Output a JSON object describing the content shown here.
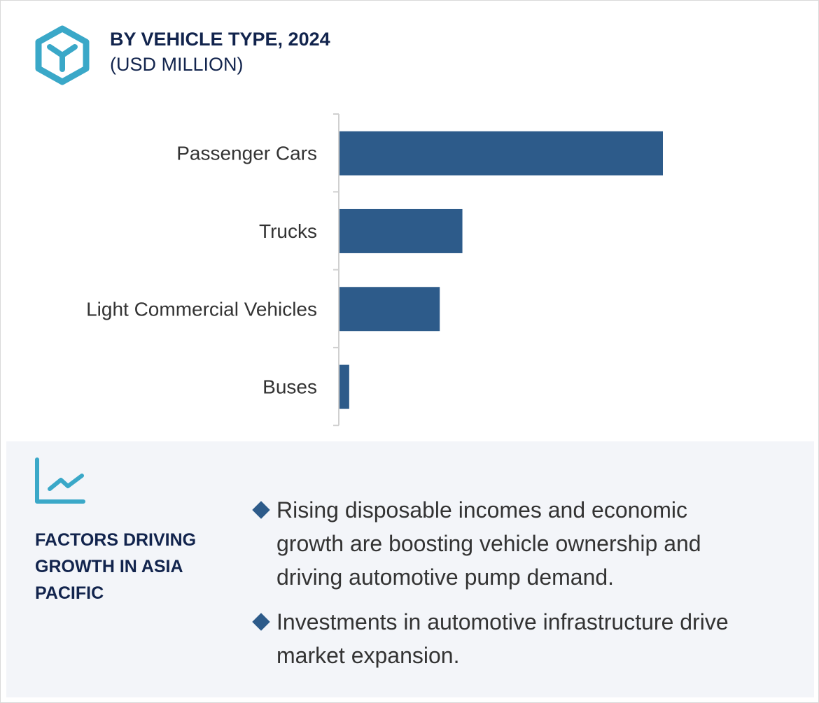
{
  "header": {
    "title": "BY VEHICLE TYPE, 2024",
    "subtitle": "(USD MILLION)",
    "icon": "hexagon-y-icon",
    "icon_color": "#3aa8c8"
  },
  "chart_data": {
    "type": "bar",
    "orientation": "horizontal",
    "title": "BY VEHICLE TYPE, 2024",
    "ylabel": "(USD MILLION)",
    "categories": [
      "Passenger Cars",
      "Trucks",
      "Light Commercial Vehicles",
      "Buses"
    ],
    "values": [
      100,
      38,
      31,
      3
    ],
    "value_note": "relative bar lengths; no values printed",
    "grid": false,
    "bar_color": "#2d5b8a"
  },
  "panel": {
    "icon": "line-chart-icon",
    "heading": "FACTORS DRIVING GROWTH IN ASIA PACIFIC",
    "bullets": [
      "Rising disposable incomes and economic growth are boosting vehicle ownership and driving automotive pump demand.",
      "Investments in automotive infrastructure drive market expansion."
    ]
  }
}
